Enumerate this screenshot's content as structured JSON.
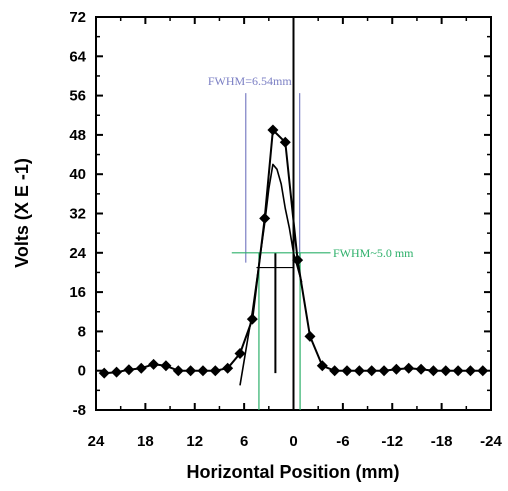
{
  "chart_data": {
    "type": "line",
    "title": "",
    "xlabel": "Horizontal Position (mm)",
    "ylabel": "Volts (X E -1)",
    "xlim": [
      24,
      -24
    ],
    "ylim": [
      -8,
      72
    ],
    "xticks": [
      "24",
      "18",
      "12",
      "6",
      "0",
      "-6",
      "-12",
      "-18",
      "-24"
    ],
    "xtick_values": [
      24,
      18,
      12,
      6,
      0,
      -6,
      -12,
      -18,
      -24
    ],
    "yticks": [
      "72",
      "64",
      "56",
      "48",
      "40",
      "32",
      "24",
      "16",
      "8",
      "0",
      "-8"
    ],
    "ytick_values": [
      72,
      64,
      56,
      48,
      40,
      32,
      24,
      16,
      8,
      0,
      -8
    ],
    "grid": false,
    "series": [
      {
        "style": "diamond-markers",
        "color": "#000000",
        "x": [
          23,
          21.5,
          20,
          18.5,
          17,
          15.5,
          14,
          12.5,
          11,
          9.5,
          8,
          6.5,
          5,
          3.5,
          2.5,
          1,
          -0.5,
          -2,
          -3.5,
          -5,
          -6.5,
          -8,
          -9.5,
          -11,
          -12.5,
          -14,
          -15.5,
          -17,
          -18.5,
          -20,
          -21.5,
          -23
        ],
        "y": [
          -0.5,
          -0.3,
          0.2,
          0.5,
          1.3,
          1.0,
          0.0,
          0.0,
          0.0,
          0.0,
          0.5,
          3.5,
          10.5,
          31,
          49,
          46.5,
          22.5,
          7,
          1.0,
          0.0,
          0.0,
          0.0,
          0.0,
          0.0,
          0.3,
          0.5,
          0.3,
          0.0,
          0.0,
          0.0,
          0.0,
          0.0
        ]
      },
      {
        "style": "line",
        "color": "#000000",
        "x": [
          6.5,
          6,
          5.5,
          5,
          4.5,
          4,
          3.5,
          3,
          2.5,
          2,
          1.5,
          1,
          0.5,
          0,
          -0.5,
          -1
        ],
        "y": [
          -3,
          2,
          7,
          12,
          18,
          24,
          30,
          37,
          42,
          41,
          38,
          33,
          29,
          24,
          21,
          18
        ]
      }
    ],
    "annotations": [
      {
        "text": "FWHM=6.54mm",
        "color": "#7b7fc4",
        "x_left": 5.8,
        "x_right": -0.75,
        "y_bottom": 22,
        "y_top": 56.5
      },
      {
        "text": "FWHM~5.0 mm",
        "color": "#2db06a",
        "x_left": 4.2,
        "x_right": -0.8,
        "y_level": 24,
        "y_bottom": -8,
        "y_top": 24
      }
    ],
    "reference_lines": [
      {
        "orientation": "vertical",
        "x": 0,
        "color": "#000000"
      },
      {
        "orientation": "vertical",
        "x": 2.2,
        "y_from": -0.5,
        "y_to": 24,
        "color": "#000000"
      },
      {
        "orientation": "horizontal",
        "y": 21,
        "x_from": 4.5,
        "x_to": 0,
        "color": "#000000"
      }
    ]
  }
}
